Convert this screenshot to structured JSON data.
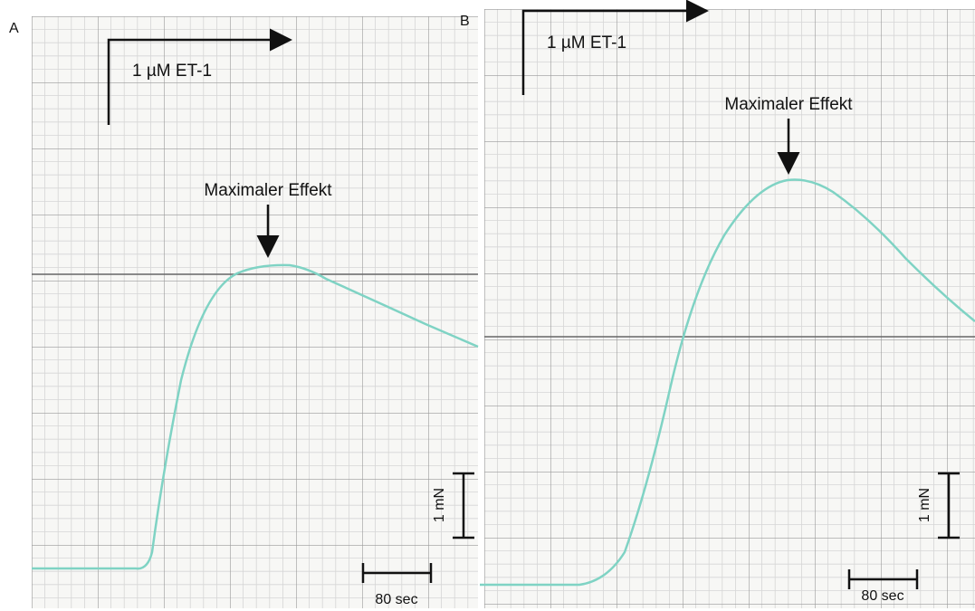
{
  "panels": [
    {
      "label": "A",
      "stimulus": "1 µM ET-1",
      "annotation": "Maximaler Effekt",
      "scale_force": "1 mN",
      "scale_time": "80 sec"
    },
    {
      "label": "B",
      "stimulus": "1 µM ET-1",
      "annotation": "Maximaler Effekt",
      "scale_force": "1 mN",
      "scale_time": "80 sec"
    }
  ]
}
